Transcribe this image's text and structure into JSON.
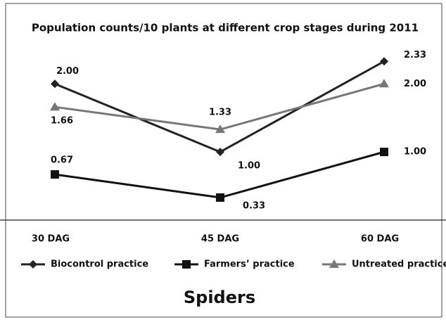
{
  "chart_data": {
    "type": "line",
    "title": "Population counts/10 plants at different crop stages during 2011",
    "xlabel": "Spiders",
    "categories": [
      "30 DAG",
      "45 DAG",
      "60 DAG"
    ],
    "ylim": [
      0,
      3.2
    ],
    "series": [
      {
        "name": "Biocontrol practice",
        "color": "#222222",
        "marker": "diamond",
        "values": [
          2.0,
          1.0,
          2.33
        ],
        "value_labels": [
          "2.00",
          "1.00",
          "2.33"
        ]
      },
      {
        "name": "Farmers’ practice",
        "color": "#111111",
        "marker": "square",
        "values": [
          0.67,
          0.33,
          1.0
        ],
        "value_labels": [
          "0.67",
          "0.33",
          "1.00"
        ]
      },
      {
        "name": "Untreated practice",
        "color": "#777777",
        "marker": "triangle",
        "values": [
          1.66,
          1.33,
          2.0
        ],
        "value_labels": [
          "1.66",
          "1.33",
          "2.00"
        ]
      }
    ],
    "legend": "bottom"
  }
}
